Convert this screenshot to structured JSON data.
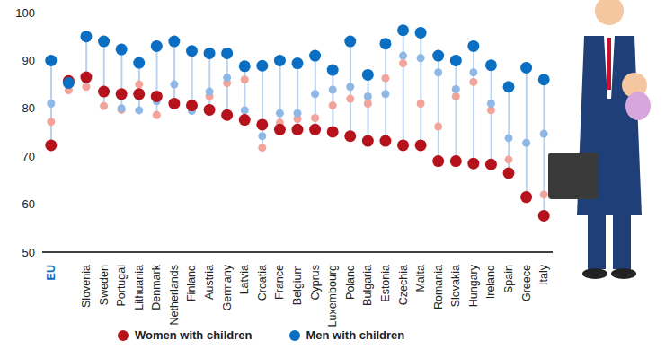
{
  "chart_data": {
    "type": "scatter",
    "categories": [
      "EU",
      null,
      "Slovenia",
      "Sweden",
      "Portugal",
      "Lithuania",
      "Denmark",
      "Netherlands",
      "Finland",
      "Austria",
      "Germany",
      "Latvia",
      "Croatia",
      "France",
      "Belgium",
      "Cyprus",
      "Luxembourg",
      "Poland",
      "Bulgaria",
      "Estonia",
      "Czechia",
      "Malta",
      "Romania",
      "Slovakia",
      "Hungary",
      "Ireland",
      "Spain",
      "Greece",
      "Italy"
    ],
    "series": [
      {
        "color": "#f2a49b",
        "marker": "circle",
        "values": [
          77.2,
          83.8,
          84.5,
          80.5,
          79.7,
          85.0,
          78.6,
          81.3,
          80.3,
          82.5,
          85.3,
          86.0,
          71.8,
          77.0,
          77.8,
          78.0,
          80.6,
          82.0,
          81.0,
          86.3,
          89.4,
          81.0,
          76.2,
          82.5,
          85.5,
          79.6,
          69.3,
          61.0,
          62.0
        ]
      },
      {
        "color": "#8fb8e6",
        "marker": "circle",
        "values": [
          81.0,
          85.5,
          86.0,
          83.5,
          80.0,
          79.6,
          81.5,
          85.0,
          79.5,
          83.5,
          86.4,
          79.6,
          74.2,
          79.0,
          79.0,
          83.0,
          83.9,
          84.5,
          82.5,
          83.0,
          91.0,
          90.5,
          87.5,
          84.0,
          87.5,
          81.0,
          73.8,
          72.8,
          74.7
        ]
      },
      {
        "name": "Women with children",
        "color": "#b5121b",
        "marker": "circle",
        "values": [
          72.3,
          85.7,
          86.5,
          83.5,
          83.0,
          83.0,
          82.5,
          81.0,
          80.6,
          79.7,
          78.6,
          77.6,
          76.6,
          75.6,
          75.6,
          75.6,
          75.1,
          74.2,
          73.2,
          73.2,
          72.3,
          72.3,
          69.0,
          69.0,
          68.5,
          68.3,
          66.5,
          61.5,
          57.6
        ]
      },
      {
        "name": "Men with children",
        "color": "#0a6fc2",
        "marker": "circle",
        "values": [
          90.0,
          85.3,
          95.0,
          94.0,
          92.3,
          89.5,
          93.0,
          94.0,
          92.0,
          91.5,
          91.5,
          88.8,
          88.9,
          90.0,
          89.4,
          91.0,
          88.0,
          94.0,
          87.0,
          93.5,
          96.3,
          95.8,
          91.0,
          90.0,
          93.0,
          89.0,
          84.5,
          88.5,
          86.0
        ]
      }
    ],
    "ylim": [
      50,
      100
    ],
    "yticks": [
      50,
      60,
      70,
      80,
      90,
      100
    ],
    "legend": "bottom",
    "grid": false
  }
}
